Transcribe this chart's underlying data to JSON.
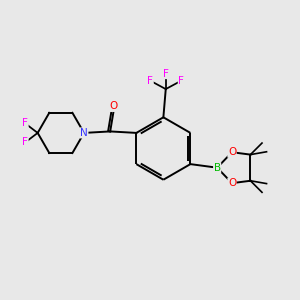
{
  "background_color": "#e8e8e8",
  "atom_colors": {
    "C": "#000000",
    "N": "#3333ff",
    "O": "#ff0000",
    "F": "#ff00ff",
    "B": "#00bb00"
  },
  "bond_color": "#000000",
  "figsize": [
    3.0,
    3.0
  ],
  "dpi": 100,
  "bond_lw": 1.4,
  "font_size": 7.5
}
